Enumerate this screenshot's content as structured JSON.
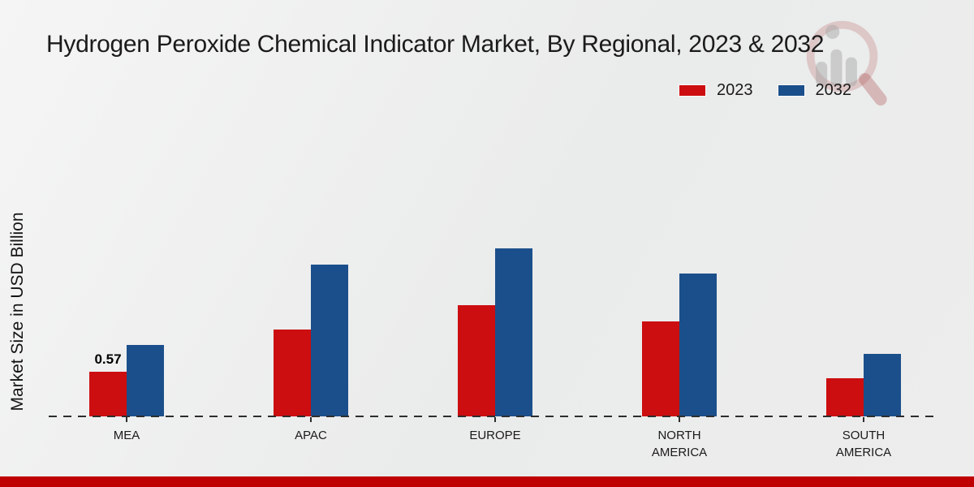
{
  "title": "Hydrogen Peroxide Chemical Indicator Market, By Regional, 2023 & 2032",
  "ylabel": "Market Size in USD Billion",
  "legend": {
    "items": [
      {
        "label": "2023",
        "color": "#cc0e10"
      },
      {
        "label": "2032",
        "color": "#1b4f8b"
      }
    ]
  },
  "chart_data": {
    "type": "bar",
    "title": "Hydrogen Peroxide Chemical Indicator Market, By Regional, 2023 & 2032",
    "xlabel": "",
    "ylabel": "Market Size in USD Billion",
    "categories": [
      "MEA",
      "APAC",
      "EUROPE",
      "NORTH AMERICA",
      "SOUTH AMERICA"
    ],
    "series": [
      {
        "name": "2023",
        "color": "#cc0e10",
        "values": [
          0.57,
          1.12,
          1.43,
          1.22,
          0.49
        ]
      },
      {
        "name": "2032",
        "color": "#1b4f8b",
        "values": [
          0.92,
          1.95,
          2.16,
          1.84,
          0.8
        ]
      }
    ],
    "annotations": [
      {
        "category_index": 0,
        "series_index": 0,
        "text": "0.57"
      }
    ],
    "ylim": [
      0,
      2.5
    ],
    "grid": false,
    "axis_style": "dashed-baseline-only",
    "legend_position": "top-right"
  },
  "colors": {
    "background": "#ebecec",
    "footer_stripe": "#bf0103",
    "baseline": "#2d2d2d",
    "watermark_red": "#c47b7b",
    "watermark_gray": "#9c9c9c"
  },
  "watermark": "market-research-future-logo"
}
